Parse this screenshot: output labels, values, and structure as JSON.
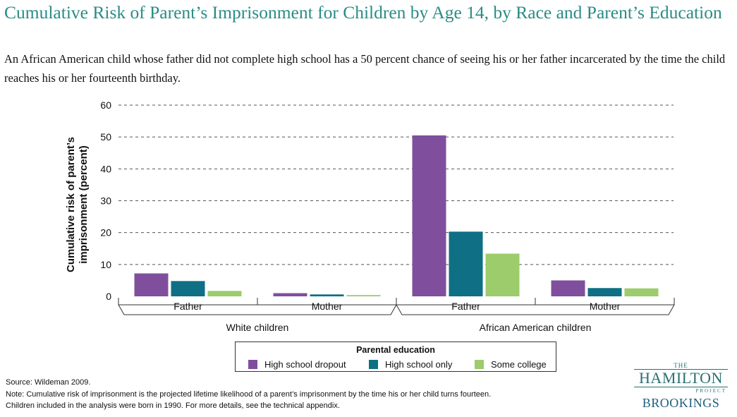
{
  "title": "Cumulative Risk of Parent’s Imprisonment for Children by Age 14, by Race and Parent’s Education",
  "subtitle": "An African American child whose father did not complete high school has a 50 percent chance of seeing his or her father incarcerated by the time the child reaches his or her fourteenth birthday.",
  "chart_data": {
    "type": "bar",
    "ylabel": "Cumulative risk of parent’s imprisonment (percent)",
    "ylim": [
      0,
      60
    ],
    "yticks": [
      0,
      10,
      20,
      30,
      40,
      50,
      60
    ],
    "grid": "horizontal-dashed",
    "groups": [
      {
        "label": "White children",
        "categories": [
          "Father",
          "Mother"
        ]
      },
      {
        "label": "African American children",
        "categories": [
          "Father",
          "Mother"
        ]
      }
    ],
    "categories": [
      "Father",
      "Mother",
      "Father",
      "Mother"
    ],
    "series": [
      {
        "name": "High school dropout",
        "color": "#7f4f9e",
        "values": [
          7.2,
          1.0,
          50.5,
          5.0
        ]
      },
      {
        "name": "High school only",
        "color": "#0f6f84",
        "values": [
          4.8,
          0.6,
          20.3,
          2.6
        ]
      },
      {
        "name": "Some college",
        "color": "#9ccc6b",
        "values": [
          1.7,
          0.4,
          13.4,
          2.5
        ]
      }
    ],
    "legend": {
      "title": "Parental education",
      "position": "bottom-center"
    }
  },
  "source": "Source: Wildeman 2009.",
  "note_line1": "Note: Cumulative risk of imprisonment is the projected lifetime likelihood of a parent’s imprisonment by the time his or her child turns fourteen.",
  "note_line2": "Children included in the analysis were born in 1990. For more details, see the technical appendix.",
  "logo": {
    "the": "THE",
    "hamilton": "HAMILTON",
    "project": "PROJECT",
    "brookings": "BROOKINGS"
  }
}
